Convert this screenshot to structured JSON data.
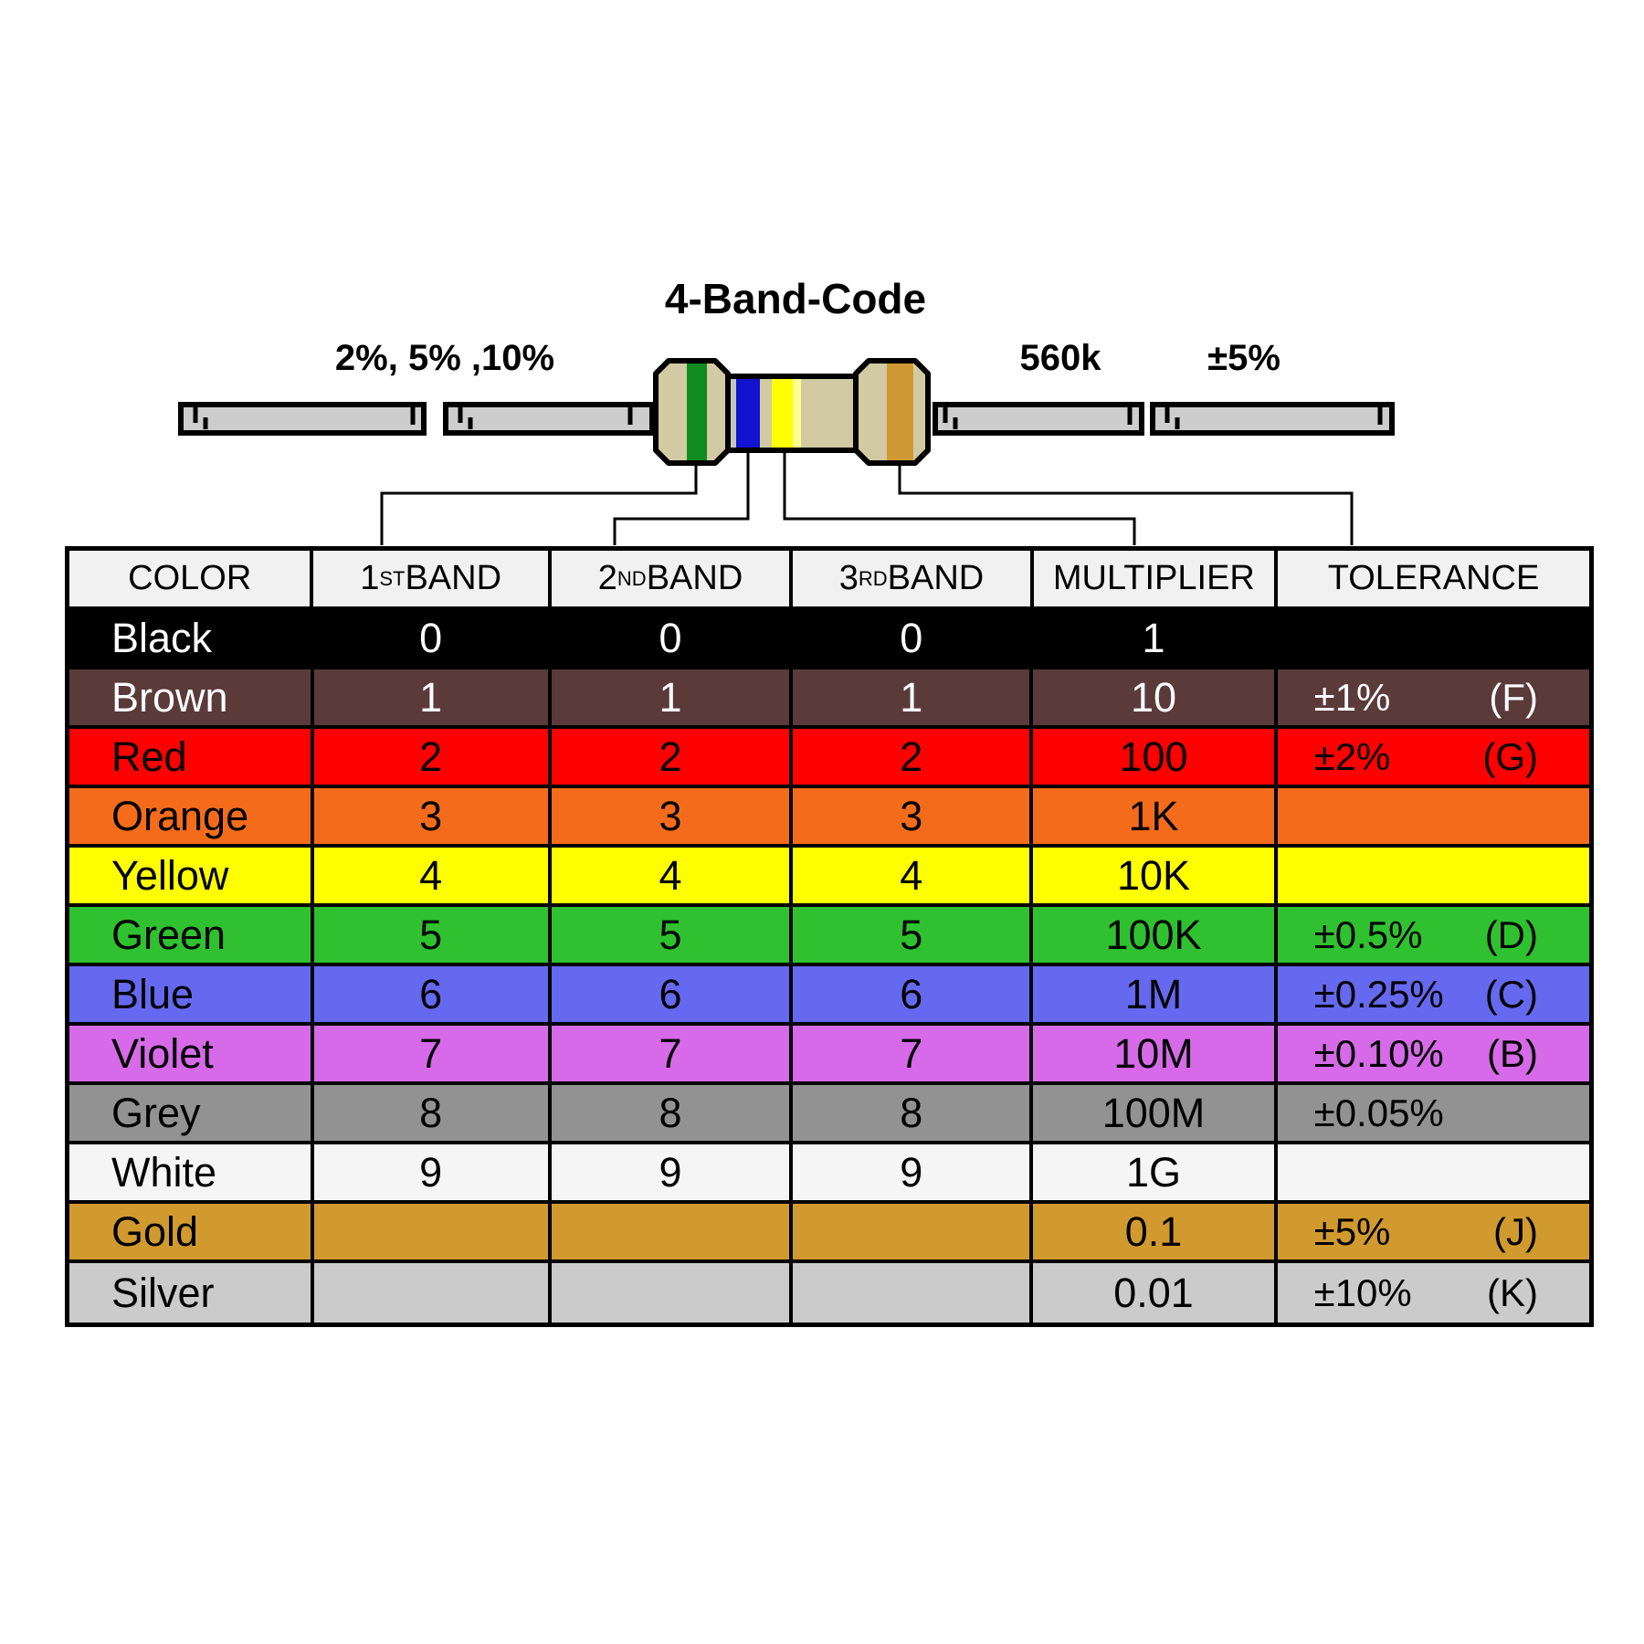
{
  "diagram": {
    "title": "4-Band-Code",
    "left_label": "2%, 5% ,10%",
    "value_label": "560k",
    "tolerance_label": "±5%",
    "resistor": {
      "body_hex": "#d1caa2",
      "lead_hex": "#cdcdcd",
      "bands": [
        {
          "name": "green-band",
          "hex": "#0f8c1e"
        },
        {
          "name": "blue-band",
          "hex": "#1213ce"
        },
        {
          "name": "yellow-band",
          "hex": "#ffff00"
        },
        {
          "name": "yellow-band-light-edge",
          "hex": "#ffff8f"
        },
        {
          "name": "gold-band",
          "hex": "#cf9a33"
        }
      ]
    }
  },
  "table": {
    "headers": [
      {
        "pre": "COLOR",
        "sup": "",
        "post": ""
      },
      {
        "pre": "1",
        "sup": "ST",
        "post": " BAND"
      },
      {
        "pre": "2",
        "sup": "ND",
        "post": " BAND"
      },
      {
        "pre": "3",
        "sup": "RD",
        "post": " BAND"
      },
      {
        "pre": "MULTIPLIER",
        "sup": "",
        "post": ""
      },
      {
        "pre": "TOLERANCE",
        "sup": "",
        "post": ""
      }
    ],
    "rows": [
      {
        "color": "Black",
        "band1": "0",
        "band2": "0",
        "band3": "0",
        "multiplier": "1",
        "tolerance": "",
        "code": "",
        "bg": "#000000",
        "fg": "#ffffff"
      },
      {
        "color": "Brown",
        "band1": "1",
        "band2": "1",
        "band3": "1",
        "multiplier": "10",
        "tolerance": "±1%",
        "code": "(F)",
        "bg": "#5b3a3a",
        "fg": "#ffffff"
      },
      {
        "color": "Red",
        "band1": "2",
        "band2": "2",
        "band3": "2",
        "multiplier": "100",
        "tolerance": "±2%",
        "code": "(G)",
        "bg": "#fe0000",
        "fg": "#000000"
      },
      {
        "color": "Orange",
        "band1": "3",
        "band2": "3",
        "band3": "3",
        "multiplier": "1K",
        "tolerance": "",
        "code": "",
        "bg": "#f46c1b",
        "fg": "#000000"
      },
      {
        "color": "Yellow",
        "band1": "4",
        "band2": "4",
        "band3": "4",
        "multiplier": "10K",
        "tolerance": "",
        "code": "",
        "bg": "#ffff00",
        "fg": "#000000"
      },
      {
        "color": "Green",
        "band1": "5",
        "band2": "5",
        "band3": "5",
        "multiplier": "100K",
        "tolerance": "±0.5%",
        "code": "(D)",
        "bg": "#2fc12f",
        "fg": "#000000"
      },
      {
        "color": "Blue",
        "band1": "6",
        "band2": "6",
        "band3": "6",
        "multiplier": "1M",
        "tolerance": "±0.25%",
        "code": "(C)",
        "bg": "#6569ef",
        "fg": "#000000"
      },
      {
        "color": "Violet",
        "band1": "7",
        "band2": "7",
        "band3": "7",
        "multiplier": "10M",
        "tolerance": "±0.10%",
        "code": "(B)",
        "bg": "#d66ae8",
        "fg": "#000000"
      },
      {
        "color": "Grey",
        "band1": "8",
        "band2": "8",
        "band3": "8",
        "multiplier": "100M",
        "tolerance": "±0.05%",
        "code": "",
        "bg": "#929292",
        "fg": "#000000"
      },
      {
        "color": "White",
        "band1": "9",
        "band2": "9",
        "band3": "9",
        "multiplier": "1G",
        "tolerance": "",
        "code": "",
        "bg": "#f5f5f5",
        "fg": "#000000"
      },
      {
        "color": "Gold",
        "band1": "",
        "band2": "",
        "band3": "",
        "multiplier": "0.1",
        "tolerance": "±5%",
        "code": "(J)",
        "bg": "#d19a2e",
        "fg": "#000000"
      },
      {
        "color": "Silver",
        "band1": "",
        "band2": "",
        "band3": "",
        "multiplier": "0.01",
        "tolerance": "±10%",
        "code": "(K)",
        "bg": "#cbcbcb",
        "fg": "#000000"
      }
    ]
  }
}
